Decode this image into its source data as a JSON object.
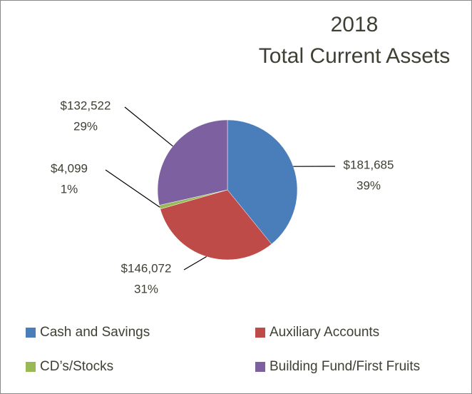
{
  "chart_data": {
    "type": "pie",
    "title": "2018",
    "subtitle": "Total Current Assets",
    "categories": [
      "Cash and Savings",
      "Auxiliary Accounts",
      "CD’s/Stocks",
      "Building Fund/First Fruits"
    ],
    "values": [
      181685,
      146072,
      4099,
      132522
    ],
    "value_labels": [
      "$181,685",
      "$146,072",
      "$4,099",
      "$132,522"
    ],
    "percent_labels": [
      "39%",
      "31%",
      "1%",
      "29%"
    ],
    "colors": [
      "#4a7ebb",
      "#be4b48",
      "#98b954",
      "#7d60a0"
    ],
    "legend": "bottom"
  }
}
